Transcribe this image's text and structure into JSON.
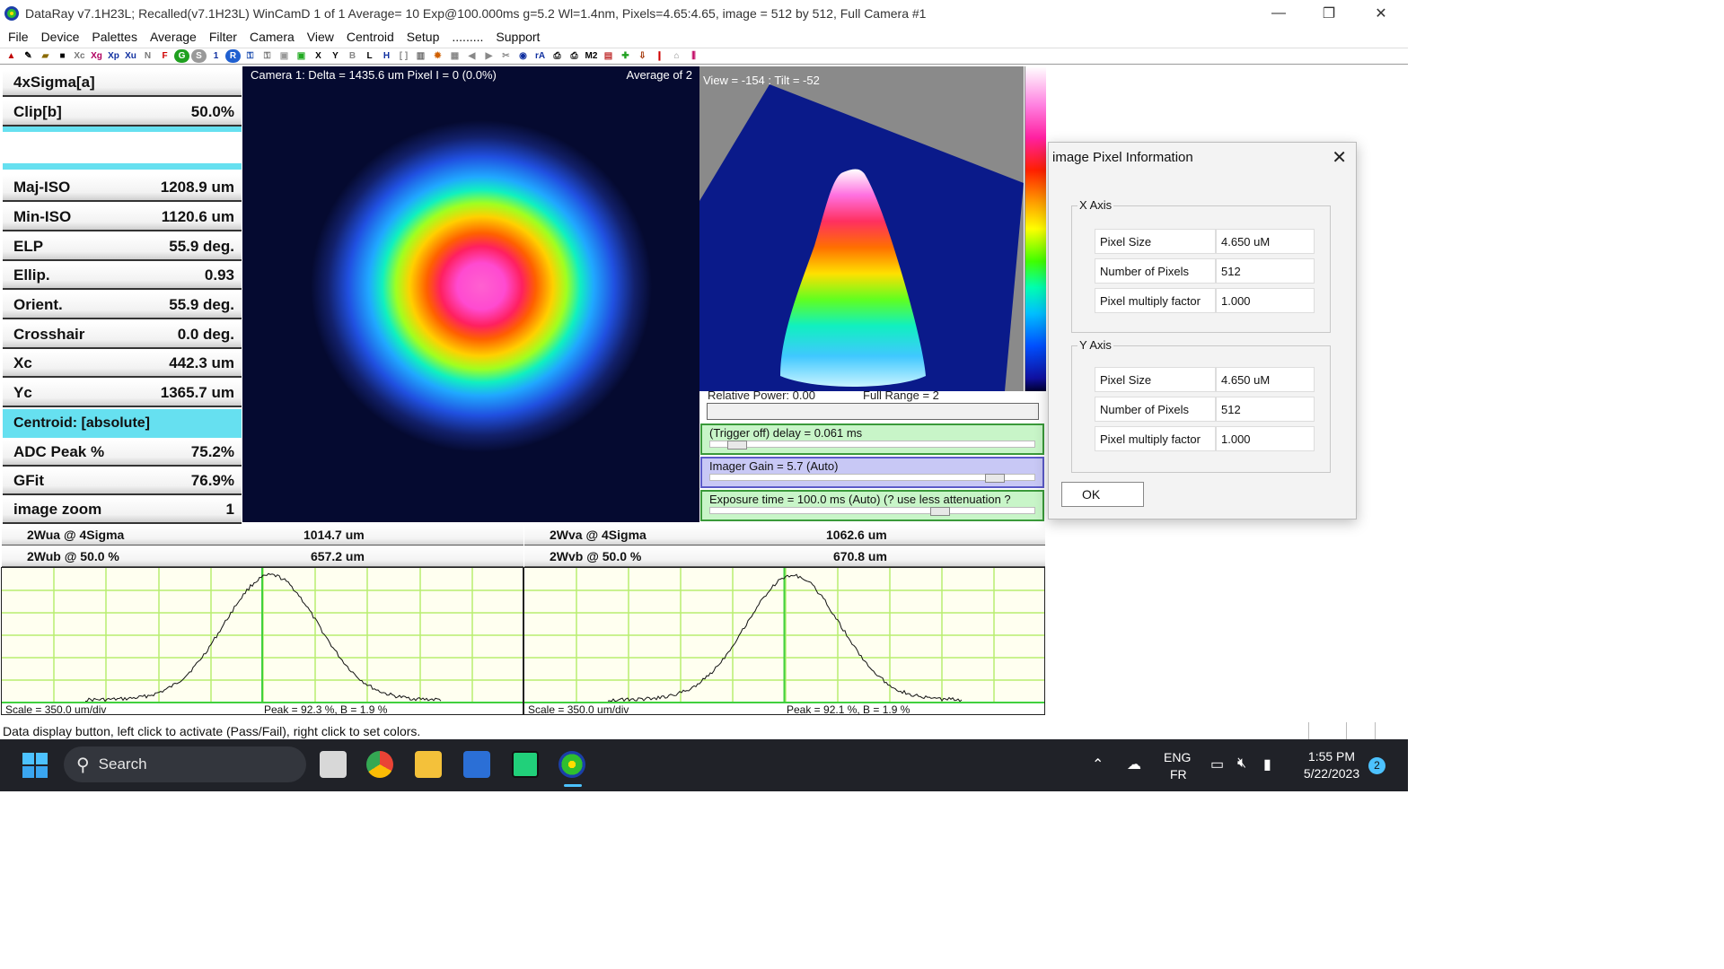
{
  "window": {
    "title": "DataRay v7.1H23L; Recalled(v7.1H23L)  WinCamD 1 of 1   Average= 10  Exp@100.000ms g=5.2     Wl=1.4nm, Pixels=4.65:4.65, image = 512 by 512, Full   Camera #1",
    "minimize_glyph": "—",
    "restore_glyph": "❐",
    "close_glyph": "✕"
  },
  "menu": [
    "File",
    "Device",
    "Palettes",
    "Average",
    "Filter",
    "Camera",
    "View",
    "Centroid",
    "Setup",
    ".........",
    "Support"
  ],
  "toolbar": {
    "text_buttons": [
      "Xc",
      "Xg",
      "Xp",
      "Xu",
      "N",
      "F",
      "G",
      "S",
      "1",
      "R",
      "X",
      "Y",
      "B",
      "L",
      "H",
      "rA",
      "M2"
    ]
  },
  "params": {
    "title1": "4xSigma[a]",
    "clip_label": "Clip[b]",
    "clip_value": "50.0%",
    "rows": [
      {
        "label": "Maj-ISO",
        "value": "1208.9 um"
      },
      {
        "label": "Min-ISO",
        "value": "1120.6 um"
      },
      {
        "label": "ELP",
        "value": "55.9 deg."
      },
      {
        "label": "Ellip.",
        "value": "0.93"
      },
      {
        "label": "Orient.",
        "value": "55.9 deg."
      },
      {
        "label": "Crosshair",
        "value": "0.0 deg."
      },
      {
        "label": "Xc",
        "value": "442.3 um"
      },
      {
        "label": "Yc",
        "value": "1365.7 um"
      }
    ],
    "centroid_label": "Centroid: [absolute]",
    "rows2": [
      {
        "label": "ADC Peak %",
        "value": "75.2%"
      },
      {
        "label": "GFit",
        "value": "76.9%"
      },
      {
        "label": "image zoom",
        "value": "1"
      }
    ]
  },
  "beam_view": {
    "caption_left": "Camera 1: Delta = 1435.6 um Pixel I = 0 (0.0%)",
    "caption_right": "Average of 2"
  },
  "view3d": {
    "caption": "View = -154 : Tilt = -52"
  },
  "controls": {
    "relative_power": "Relative Power: 0.00",
    "full_range": "Full Range = 2",
    "trigger_label": "(Trigger off) delay = 0.061 ms",
    "trigger_level": 0.06,
    "gain_label": "Imager Gain = 5.7  (Auto)",
    "gain_level": 0.9,
    "exposure_label": "Exposure time = 100.0 ms (Auto)   (?  use less attenuation ?",
    "exposure_level": 0.72,
    "trigger_color": "#c8f5c8",
    "gain_color": "#c8c8f5",
    "exposure_color": "#c8f5c8"
  },
  "widths": {
    "a_left_label": "2Wua @ 4Sigma",
    "a_left_value": "1014.7 um",
    "b_left_label": "2Wub @ 50.0 %",
    "b_left_value": "657.2 um",
    "a_right_label": "2Wva @ 4Sigma",
    "a_right_value": "1062.6 um",
    "b_right_label": "2Wvb @ 50.0 %",
    "b_right_value": "670.8 um"
  },
  "plots": {
    "left_scale": "Scale = 350.0 um/div",
    "left_peak": "Peak = 92.3 %,  B = 1.9 %",
    "right_scale": "Scale = 350.0 um/div",
    "right_peak": "Peak = 92.1 %,  B = 1.9 %",
    "left_peak_fraction": 0.923,
    "right_peak_fraction": 0.921
  },
  "status_text": "Data display button, left click to activate (Pass/Fail), right click to set colors.",
  "dialog": {
    "title": "image Pixel Information",
    "x_axis_label": "X Axis",
    "y_axis_label": "Y Axis",
    "x_rows": [
      {
        "label": "Pixel Size",
        "value": "4.650 uM"
      },
      {
        "label": "Number of Pixels",
        "value": "512"
      },
      {
        "label": "Pixel multiply factor",
        "value": "1.000"
      }
    ],
    "y_rows": [
      {
        "label": "Pixel Size",
        "value": "4.650 uM"
      },
      {
        "label": "Number of Pixels",
        "value": "512"
      },
      {
        "label": "Pixel multiply factor",
        "value": "1.000"
      }
    ],
    "ok_label": "OK",
    "close_glyph": "✕"
  },
  "taskbar": {
    "search_placeholder": "Search",
    "lang_top": "ENG",
    "lang_bottom": "FR",
    "time": "1:55 PM",
    "date": "5/22/2023",
    "notification_count": "2"
  }
}
